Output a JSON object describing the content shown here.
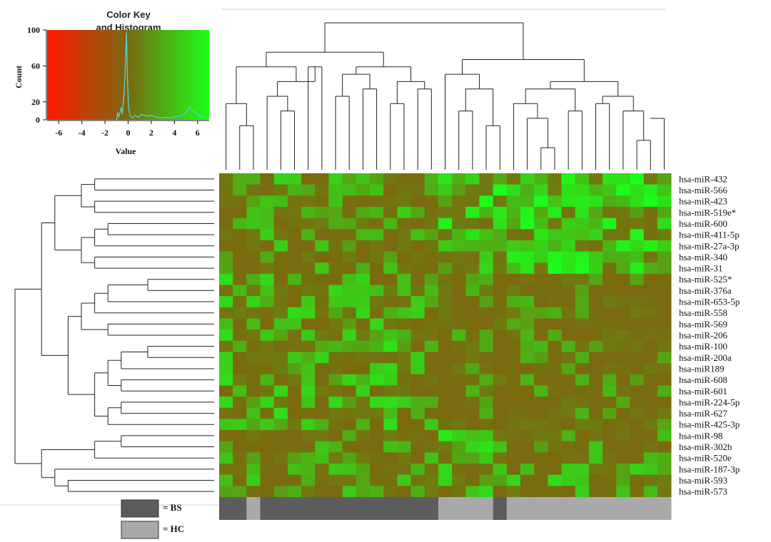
{
  "chart_data": {
    "type": "heatmap",
    "color_key": {
      "title_line1": "Color Key",
      "title_line2": "and Histogram",
      "xlabel": "Value",
      "ylabel": "Count",
      "x_ticks": [
        "-6",
        "-4",
        "-2",
        "0",
        "2",
        "4",
        "6"
      ],
      "y_ticks": [
        "0",
        "20",
        "60",
        "100"
      ],
      "xlim": [
        -7,
        7
      ],
      "ylim": [
        0,
        100
      ],
      "low_color": "#ff1a00",
      "mid_color": "#7a6a10",
      "high_color": "#1aff1a",
      "histogram_color": "#4fd6d6",
      "histogram_peak": 97
    },
    "rows": [
      "hsa-miR-432",
      "hsa-miR-566",
      "hsa-miR-423",
      "hsa-miR-519e*",
      "hsa-miR-600",
      "hsa-miR-411-5p",
      "hsa-miR-27a-3p",
      "hsa-miR-340",
      "hsa-miR-31",
      "hsa-miR-525*",
      "hsa-miR-376a",
      "hsa-miR-653-5p",
      "hsa-miR-558",
      "hsa-miR-569",
      "hsa-miR-206",
      "hsa-miR-100",
      "hsa-miR-200a",
      "hsa-miR189",
      "hsa-miR-608",
      "hsa-miR-601",
      "hsa-miR-224-5p",
      "hsa-miR-627",
      "hsa-miR-425-3p",
      "hsa-miR-98",
      "hsa-miR-302b",
      "hsa-miR-520e",
      "hsa-miR-187-3p",
      "hsa-miR-593",
      "hsa-miR-573"
    ],
    "column_groups": [
      "BS",
      "BS",
      "HC",
      "BS",
      "BS",
      "BS",
      "BS",
      "BS",
      "BS",
      "BS",
      "BS",
      "BS",
      "BS",
      "BS",
      "BS",
      "BS",
      "HC",
      "HC",
      "HC",
      "HC",
      "BS",
      "HC",
      "HC",
      "HC",
      "HC",
      "HC",
      "HC",
      "HC",
      "HC",
      "HC",
      "HC",
      "HC",
      "HC"
    ],
    "group_colors": {
      "BS": "#5c5c5c",
      "HC": "#a9a9a9"
    },
    "legend": [
      {
        "group": "BS",
        "label": "= BS"
      },
      {
        "group": "HC",
        "label": "= HC"
      }
    ]
  }
}
